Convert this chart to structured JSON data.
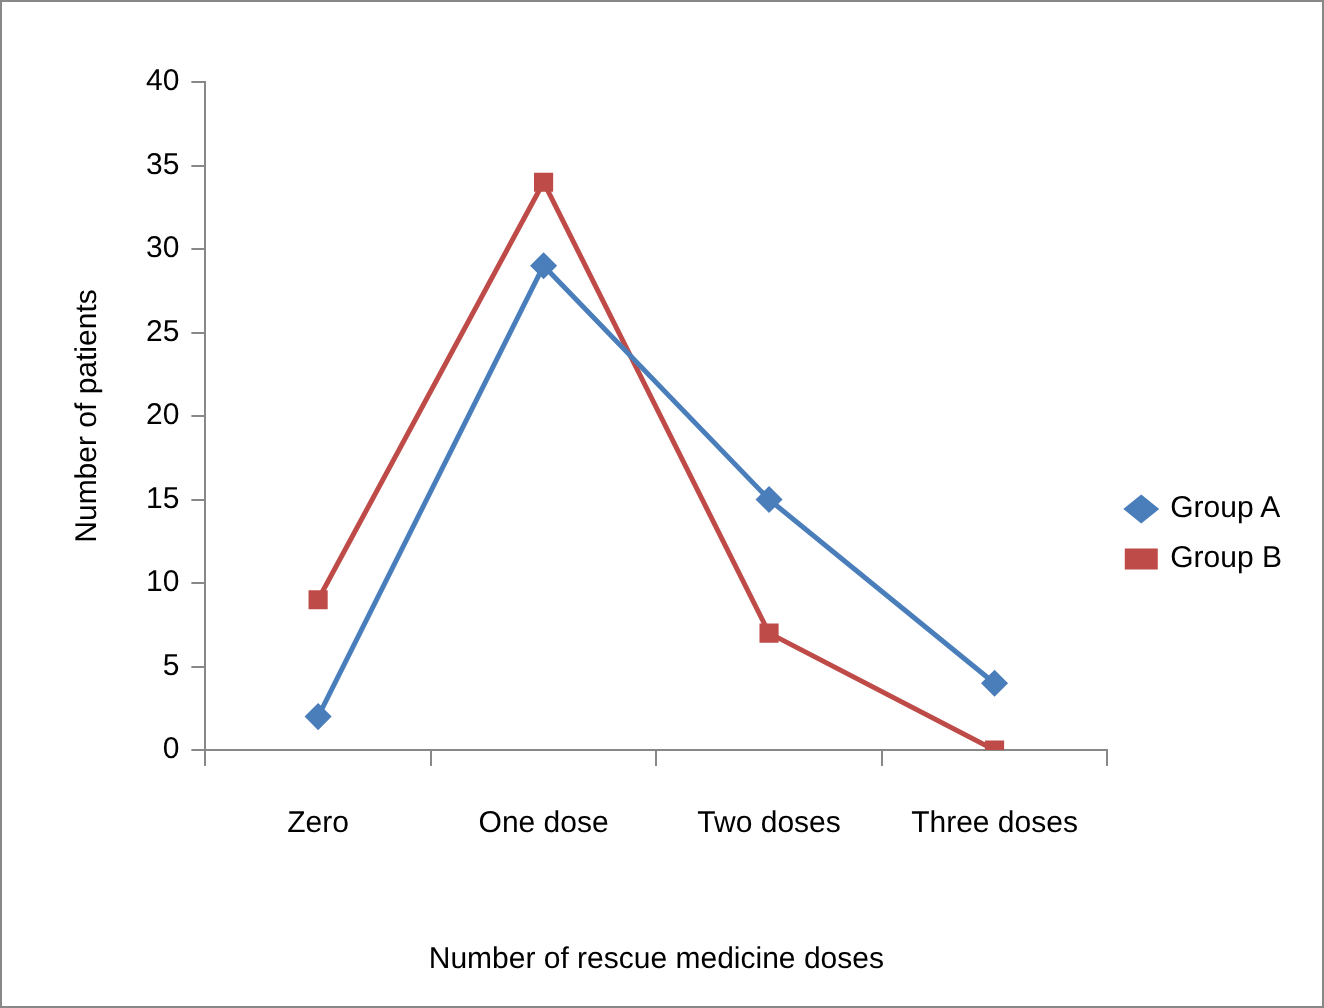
{
  "chart_data": {
    "type": "line",
    "xlabel": "Number of rescue medicine doses",
    "ylabel": "Number of patients",
    "categories": [
      "Zero",
      "One dose",
      "Two doses",
      "Three doses"
    ],
    "series": [
      {
        "name": "Group A",
        "color": "#4a7ebb",
        "marker": "diamond",
        "values": [
          2,
          29,
          15,
          4
        ]
      },
      {
        "name": "Group B",
        "color": "#be4b48",
        "marker": "square",
        "values": [
          9,
          34,
          7,
          0
        ]
      }
    ],
    "ylim": [
      0,
      40
    ],
    "yticks": [
      0,
      5,
      10,
      15,
      20,
      25,
      30,
      35,
      40
    ],
    "grid": false,
    "legend": "right",
    "line_style": "solid"
  }
}
